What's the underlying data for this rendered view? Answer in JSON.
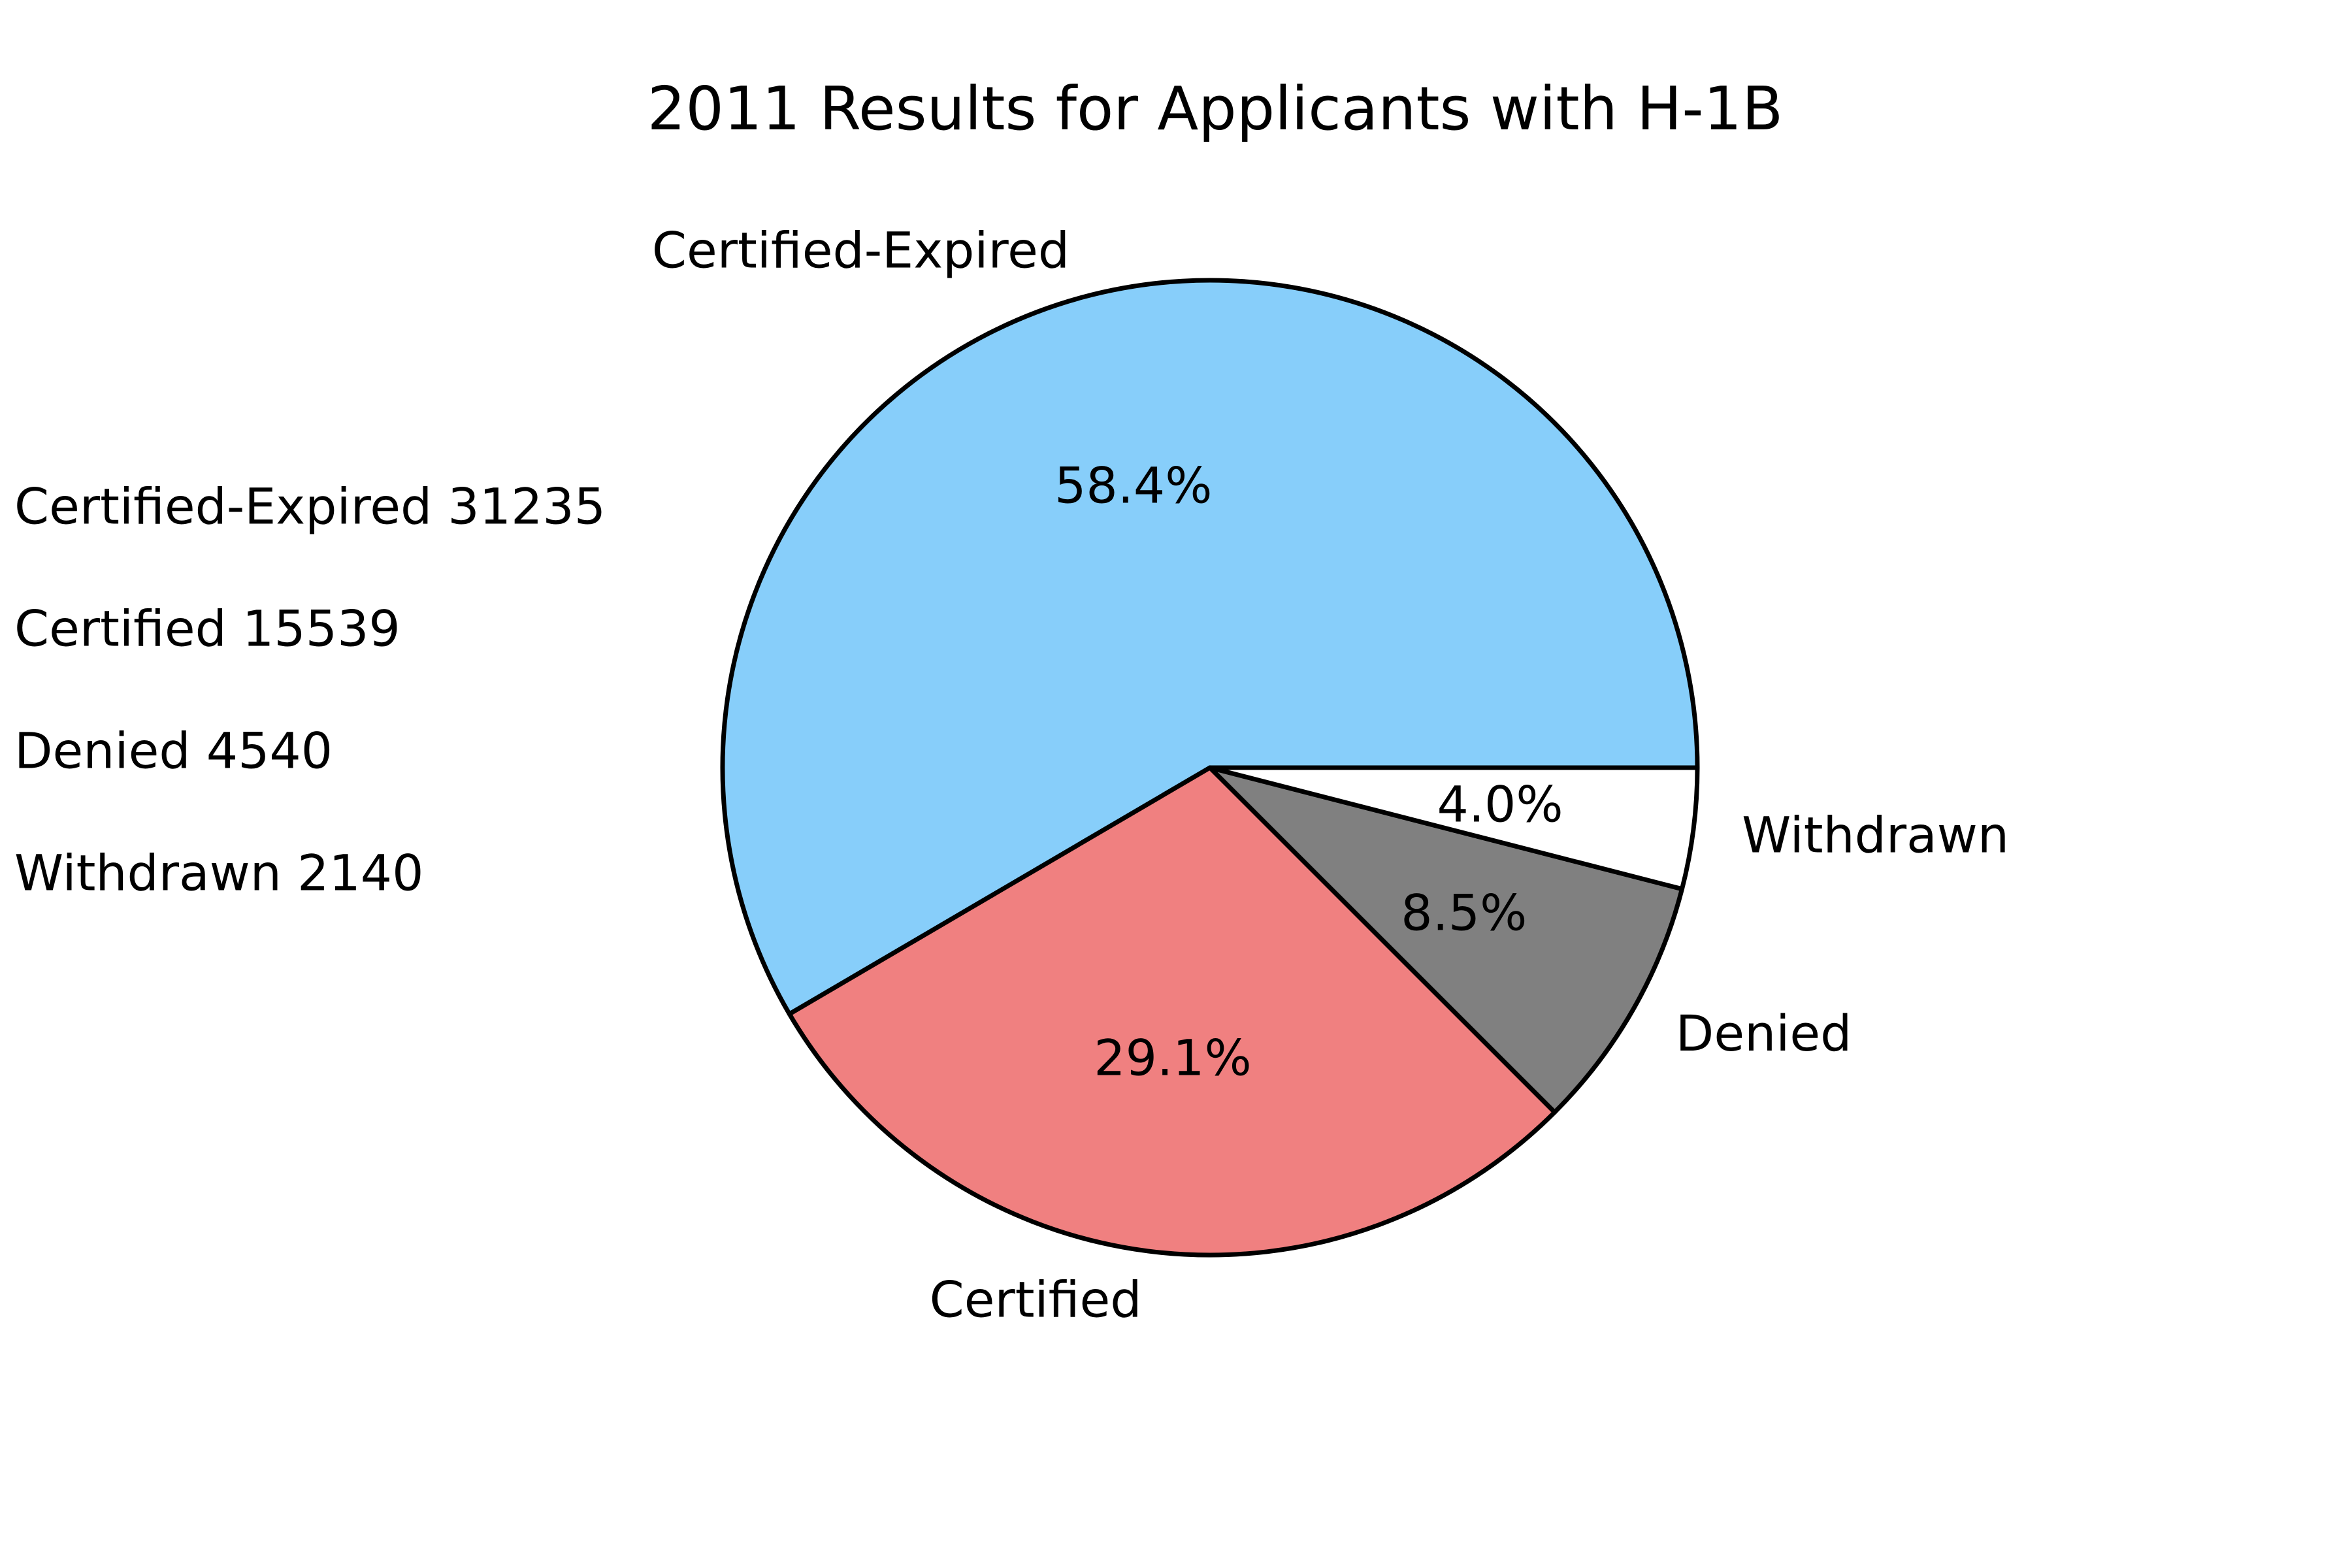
{
  "chart_data": {
    "type": "pie",
    "title": "2011 Results for Applicants with H-1B",
    "slices": [
      {
        "label": "Certified-Expired",
        "value": 31235,
        "percent_label": "58.4%",
        "color": "#87CEFA"
      },
      {
        "label": "Certified",
        "value": 15539,
        "percent_label": "29.1%",
        "color": "#F08080"
      },
      {
        "label": "Denied",
        "value": 4540,
        "percent_label": "8.5%",
        "color": "#808080"
      },
      {
        "label": "Withdrawn",
        "value": 2140,
        "percent_label": "4.0%",
        "color": "#FFFFFF"
      }
    ],
    "start_angle_deg": 0,
    "direction": "counterclockwise",
    "edge_color": "#000000",
    "side_notes": [
      "Certified-Expired 31235",
      "Certified 15539",
      "Denied 4540",
      "Withdrawn 2140"
    ]
  }
}
